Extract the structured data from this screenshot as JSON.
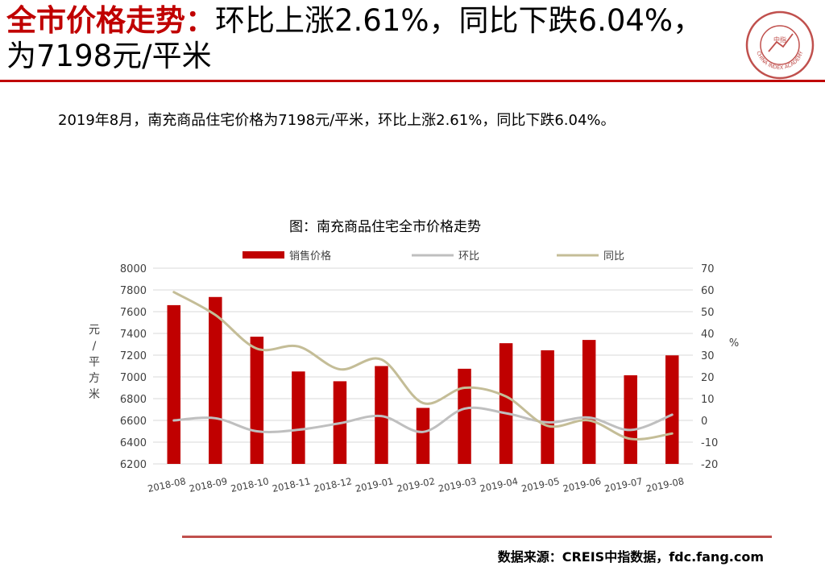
{
  "header": {
    "title_accent": "全市价格走势：",
    "title_rest": "环比上涨2.61%，同比下跌6.04%，为7198元/平米",
    "logo_text": "CHINA INDEX ACADEMY",
    "logo_center": "中指",
    "colors": {
      "accent": "#c00000"
    }
  },
  "summary": "2019年8月，南充商品住宅价格为7198元/平米，环比上涨2.61%，同比下跌6.04%。",
  "chart_data": {
    "type": "bar",
    "title": "图：南充商品住宅全市价格走势",
    "categories": [
      "2018-08",
      "2018-09",
      "2018-10",
      "2018-11",
      "2018-12",
      "2019-01",
      "2019-02",
      "2019-03",
      "2019-04",
      "2019-05",
      "2019-06",
      "2019-07",
      "2019-08"
    ],
    "series": [
      {
        "name": "销售价格",
        "kind": "bar",
        "axis": "left",
        "color": "#c00000",
        "values": [
          7660,
          7735,
          7370,
          7050,
          6960,
          7100,
          6715,
          7075,
          7310,
          7245,
          7340,
          7015,
          7198
        ]
      },
      {
        "name": "环比",
        "kind": "line",
        "axis": "right",
        "color": "#bfbfbf",
        "values": [
          0.0,
          1.0,
          -5.0,
          -4.3,
          -1.3,
          2.0,
          -5.3,
          5.4,
          3.3,
          -0.9,
          1.3,
          -4.4,
          2.61
        ]
      },
      {
        "name": "同比",
        "kind": "line",
        "axis": "right",
        "color": "#c4bd97",
        "values": [
          59.0,
          48.5,
          33.0,
          34.0,
          23.5,
          28.0,
          8.0,
          15.0,
          11.0,
          -2.5,
          0.0,
          -8.5,
          -6.04
        ]
      }
    ],
    "ylabel": "元/平方米",
    "y2label": "%",
    "ylim": [
      6200,
      8000
    ],
    "y2lim": [
      -20,
      70
    ],
    "yticks": [
      6200,
      6400,
      6600,
      6800,
      7000,
      7200,
      7400,
      7600,
      7800,
      8000
    ],
    "y2ticks": [
      -20,
      -10,
      0,
      10,
      20,
      30,
      40,
      50,
      60,
      70
    ],
    "grid": true,
    "legend": "top"
  },
  "footer": {
    "source": "数据来源：CREIS中指数据，fdc.fang.com"
  }
}
